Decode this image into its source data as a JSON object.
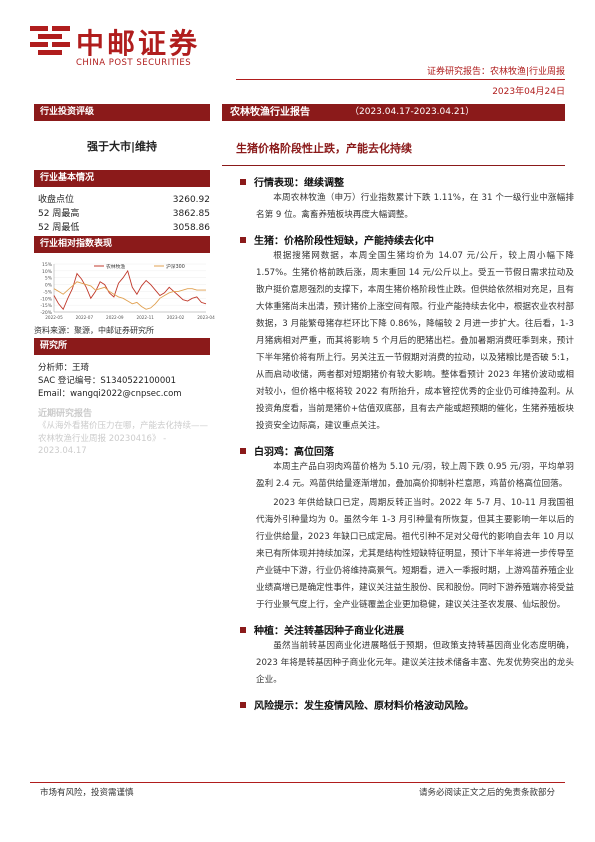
{
  "brand": {
    "name_cn": "中邮证券",
    "name_en": "CHINA POST SECURITIES",
    "colors": {
      "primary": "#b01d1d",
      "dark": "#8b1a1a"
    }
  },
  "header": {
    "report_line": "证券研究报告：农林牧渔|行业周报",
    "date": "2023年04月24日"
  },
  "sidebar": {
    "rating_title": "行业投资评级",
    "rating": "强于大市|维持",
    "basics_title": "行业基本情况",
    "stats": [
      {
        "label": "收盘点位",
        "value": "3260.92"
      },
      {
        "label": "52 周最高",
        "value": "3862.85"
      },
      {
        "label": "52 周最低",
        "value": "3058.86"
      }
    ],
    "chart_title": "行业相对指数表现",
    "chart_source": "资料来源：聚源，中邮证券研究所",
    "research_title": "研究所",
    "analyst": {
      "name": "分析师：王琦",
      "sac": "SAC 登记编号：S1340522100001",
      "email": "Email：wangqi2022@cnpsec.com"
    },
    "recent_title": "近期研究报告",
    "recent": "《从海外看猪价压力在哪，产能去化持续——农林牧渔行业周报 20230416》 - 2023.04.17"
  },
  "chart_data": {
    "type": "line",
    "x_ticks": [
      "2022-05",
      "2022-07",
      "2022-09",
      "2022-11",
      "2023-02",
      "2023-04"
    ],
    "y_ticks": [
      "15%",
      "10%",
      "5%",
      "0%",
      "-5%",
      "-10%",
      "-15%",
      "-20%"
    ],
    "ylim": [
      -20,
      15
    ],
    "legend": "top-right",
    "series": [
      {
        "name": "农林牧渔",
        "color": "#c0392b",
        "values": [
          -8,
          -14,
          -18,
          -10,
          -3,
          8,
          4,
          -2,
          -10,
          -5,
          2,
          0,
          -6,
          -9,
          1,
          5,
          10,
          -2,
          -7,
          -1,
          3,
          0,
          -4,
          -8,
          -6,
          -2,
          -5,
          -8,
          -11,
          -12,
          -10,
          -9,
          -13,
          -14
        ]
      },
      {
        "name": "沪深300",
        "color": "#e0a050",
        "values": [
          -3,
          -5,
          -7,
          -4,
          -1,
          2,
          1,
          0,
          -1,
          -4,
          -3,
          -2,
          -5,
          -7,
          -9,
          -10,
          -12,
          -14,
          -13,
          -16,
          -18,
          -17,
          -14,
          -10,
          -8,
          -6,
          -5,
          -5,
          -4,
          -3,
          -3,
          -4,
          -4,
          -4
        ]
      }
    ]
  },
  "main": {
    "title": "农林牧渔行业报告",
    "period": "（2023.04.17-2023.04.21）",
    "headline": "生猪价格阶段性止跌，产能去化持续",
    "sections": [
      {
        "heading": "行情表现：继续调整",
        "paras": [
          "本周农林牧渔（申万）行业指数累计下跌 1.11%，在 31 个一级行业中涨幅排名第 9 位。禽畜养殖板块再度大幅调整。"
        ]
      },
      {
        "heading": "生猪：价格阶段性短缺，产能持续去化中",
        "paras": [
          "根据搜猪网数据，本周全国生猪均价为 14.07 元/公斤，较上周小幅下降 1.57%。生猪价格前跌后涨，周末重回 14 元/公斤以上。受五一节假日需求拉动及散户挺价意愿强烈的支撑下，本周生猪价格阶段性止跌。但供给依然相对充足，且有大体重猪尚未出清，预计猪价上涨空间有限。行业产能持续去化中，根据农业农村部数据，3 月能繁母猪存栏环比下降 0.86%，降幅较 2 月进一步扩大。往后看，1-3 月猪病相对严重，而其将影响 5 个月后的肥猪出栏。叠加暑期消费旺季到来，预计下半年猪价将有所上行。另关注五一节假期对消费的拉动，以及猪粮比是否破 5:1，从而启动收储，两者都对短期猪价有较大影响。整体看预计 2023 年猪价波动或相对较小，但价格中枢将较 2022 有所抬升，成本管控优秀的企业仍可维持盈利。从投资角度看，当前是猪价+估值双底部，且有去产能或超预期的催化，生猪养殖板块投资安全边际高，建议重点关注。"
        ]
      },
      {
        "heading": "白羽鸡：高位回落",
        "paras": [
          "本周主产品白羽肉鸡苗价格为 5.10 元/羽，较上周下跌 0.95 元/羽，平均单羽盈利 2.4 元。鸡苗供给量逐渐增加，叠加高价抑制补栏意愿，鸡苗价格高位回落。",
          "2023 年供给缺口已定，周期反转正当时。2022 年 5-7 月、10-11 月我国祖代海外引种量均为 0。虽然今年 1-3 月引种量有所恢复，但其主要影响一年以后的行业供给量，2023 年缺口已成定局。祖代引种不足对父母代的影响自去年 10 月以来已有所体现并持续加深，尤其是结构性短缺特征明显，预计下半年将进一步传导至产业链中下游，行业仍将维持高景气。短期看，进入一季报时期，上游鸡苗养殖企业业绩高增已是确定性事件，建议关注益生股份、民和股份。同时下游养殖端亦将受益于行业景气度上行，全产业链覆盖企业更加稳健，建议关注圣农发展、仙坛股份。"
        ]
      },
      {
        "heading": "种植：关注转基因种子商业化进展",
        "paras": [
          "虽然当前转基因商业化进展略低于预期，但政策支持转基因商业化态度明确，2023 年将是转基因种子商业化元年。建议关注技术储备丰富、先发优势突出的龙头企业。"
        ]
      }
    ],
    "risk": "风险提示：发生疫情风险、原材料价格波动风险。"
  },
  "footer": {
    "left": "市场有风险，投资需谨慎",
    "right": "请务必阅读正文之后的免责条款部分"
  }
}
